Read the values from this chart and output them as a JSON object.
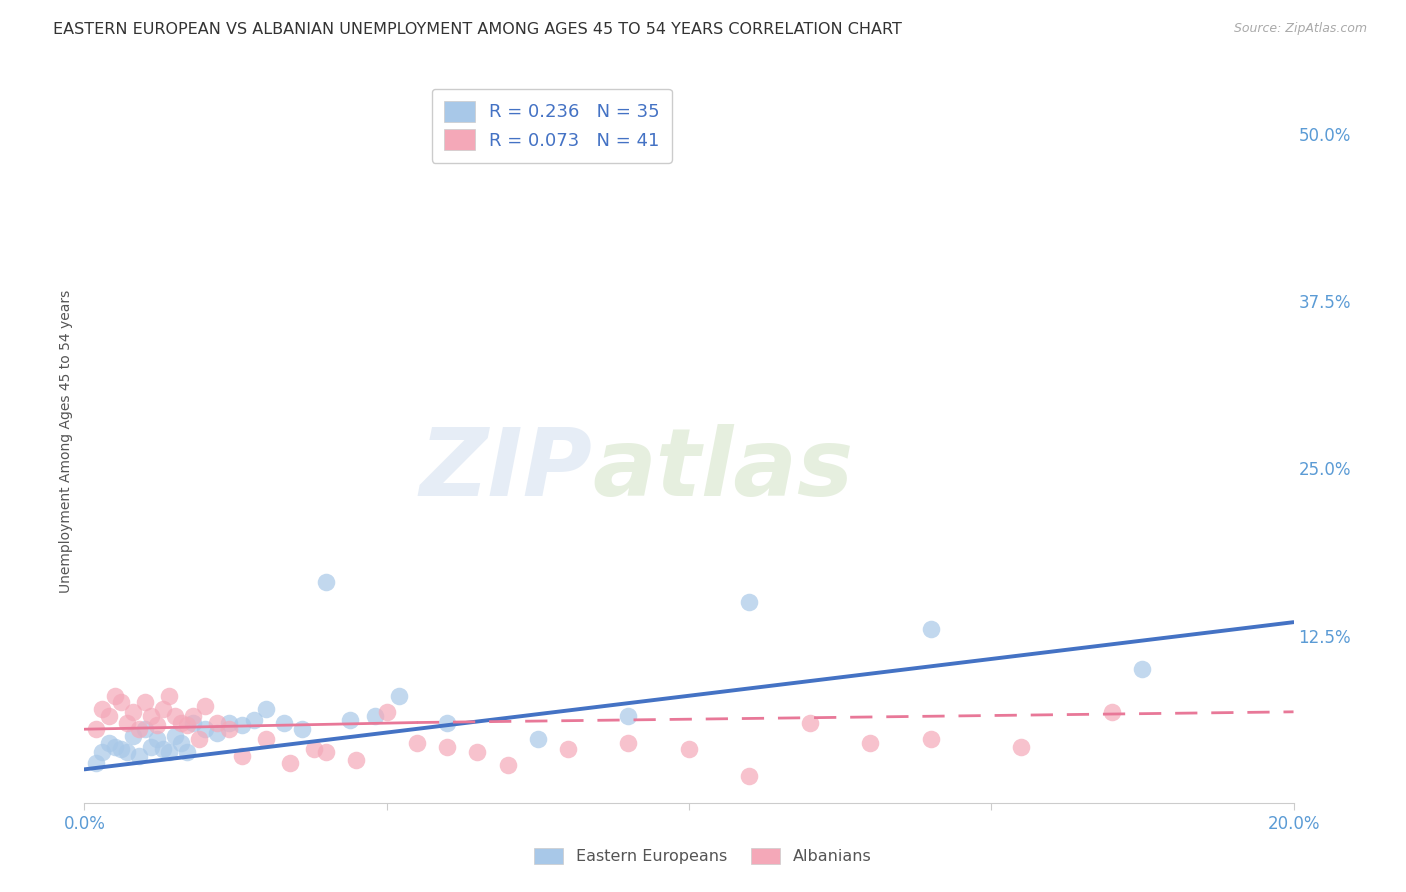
{
  "title": "EASTERN EUROPEAN VS ALBANIAN UNEMPLOYMENT AMONG AGES 45 TO 54 YEARS CORRELATION CHART",
  "source": "Source: ZipAtlas.com",
  "ylabel": "Unemployment Among Ages 45 to 54 years",
  "xlim": [
    0.0,
    0.2
  ],
  "ylim": [
    0.0,
    0.54
  ],
  "watermark_zip": "ZIP",
  "watermark_atlas": "atlas",
  "legend_entries": [
    {
      "label": "R = 0.236   N = 35",
      "color": "#a8c8e8"
    },
    {
      "label": "R = 0.073   N = 41",
      "color": "#f4a8b8"
    }
  ],
  "eastern_european_x": [
    0.002,
    0.003,
    0.004,
    0.005,
    0.006,
    0.007,
    0.008,
    0.009,
    0.01,
    0.011,
    0.012,
    0.013,
    0.014,
    0.015,
    0.016,
    0.017,
    0.018,
    0.02,
    0.022,
    0.024,
    0.026,
    0.028,
    0.03,
    0.033,
    0.036,
    0.04,
    0.044,
    0.048,
    0.052,
    0.06,
    0.075,
    0.09,
    0.11,
    0.14,
    0.175
  ],
  "eastern_european_y": [
    0.03,
    0.038,
    0.045,
    0.042,
    0.04,
    0.038,
    0.05,
    0.035,
    0.055,
    0.042,
    0.048,
    0.04,
    0.038,
    0.05,
    0.045,
    0.038,
    0.06,
    0.055,
    0.052,
    0.06,
    0.058,
    0.062,
    0.07,
    0.06,
    0.055,
    0.165,
    0.062,
    0.065,
    0.08,
    0.06,
    0.048,
    0.065,
    0.15,
    0.13,
    0.1
  ],
  "albanian_x": [
    0.002,
    0.003,
    0.004,
    0.005,
    0.006,
    0.007,
    0.008,
    0.009,
    0.01,
    0.011,
    0.012,
    0.013,
    0.014,
    0.015,
    0.016,
    0.017,
    0.018,
    0.019,
    0.02,
    0.022,
    0.024,
    0.026,
    0.03,
    0.034,
    0.038,
    0.04,
    0.045,
    0.05,
    0.055,
    0.06,
    0.065,
    0.07,
    0.08,
    0.09,
    0.1,
    0.11,
    0.12,
    0.13,
    0.14,
    0.155,
    0.17
  ],
  "albanian_y": [
    0.055,
    0.07,
    0.065,
    0.08,
    0.075,
    0.06,
    0.068,
    0.055,
    0.075,
    0.065,
    0.058,
    0.07,
    0.08,
    0.065,
    0.06,
    0.058,
    0.065,
    0.048,
    0.072,
    0.06,
    0.055,
    0.035,
    0.048,
    0.03,
    0.04,
    0.038,
    0.032,
    0.068,
    0.045,
    0.042,
    0.038,
    0.028,
    0.04,
    0.045,
    0.04,
    0.02,
    0.06,
    0.045,
    0.048,
    0.042,
    0.068
  ],
  "scatter_color_eastern": "#a8c8e8",
  "scatter_color_albanian": "#f4a8b8",
  "line_color_eastern": "#4472c4",
  "line_color_albanian": "#e87898",
  "background_color": "#ffffff",
  "grid_color": "#d8e4f0",
  "title_fontsize": 11.5,
  "tick_label_color_right": "#5b9bd5",
  "tick_label_color_bottom": "#5b9bd5",
  "ee_line_start_x": 0.0,
  "ee_line_end_x": 0.2,
  "ee_line_start_y": 0.025,
  "ee_line_end_y": 0.135,
  "alb_line_start_x": 0.0,
  "alb_line_solid_end_x": 0.055,
  "alb_line_end_x": 0.2,
  "alb_line_start_y": 0.055,
  "alb_line_solid_end_y": 0.06,
  "alb_line_end_y": 0.068
}
